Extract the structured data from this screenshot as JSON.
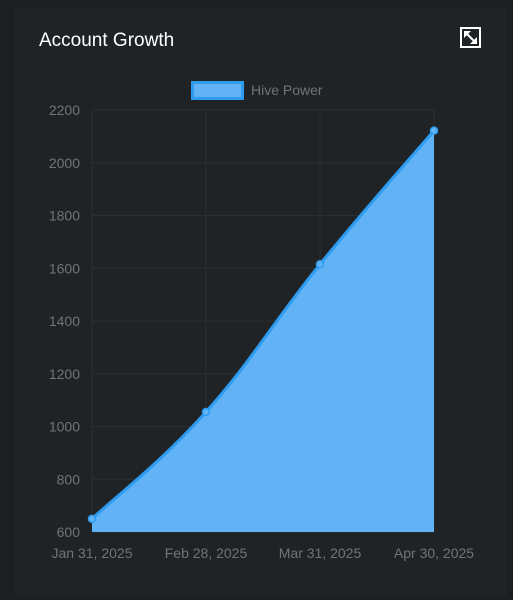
{
  "card": {
    "title": "Account Growth"
  },
  "icons": {
    "expand": "expand-icon"
  },
  "colors": {
    "background": "#1c1e21",
    "card": "#202326",
    "line": "#2d9cf0",
    "fill": "#62b3f6",
    "grid": "#2b2f33",
    "tick": "#6f7478"
  },
  "chart_data": {
    "type": "area",
    "categories": [
      "Jan 31, 2025",
      "Feb 28, 2025",
      "Mar 31, 2025",
      "Apr 30, 2025"
    ],
    "series": [
      {
        "name": "Hive Power",
        "values": [
          650,
          1055,
          1615,
          2122
        ]
      }
    ],
    "ylim": [
      600,
      2200
    ],
    "yticks": [
      600,
      800,
      1000,
      1200,
      1400,
      1600,
      1800,
      2000,
      2200
    ],
    "grid": true,
    "legend": "top-center"
  }
}
